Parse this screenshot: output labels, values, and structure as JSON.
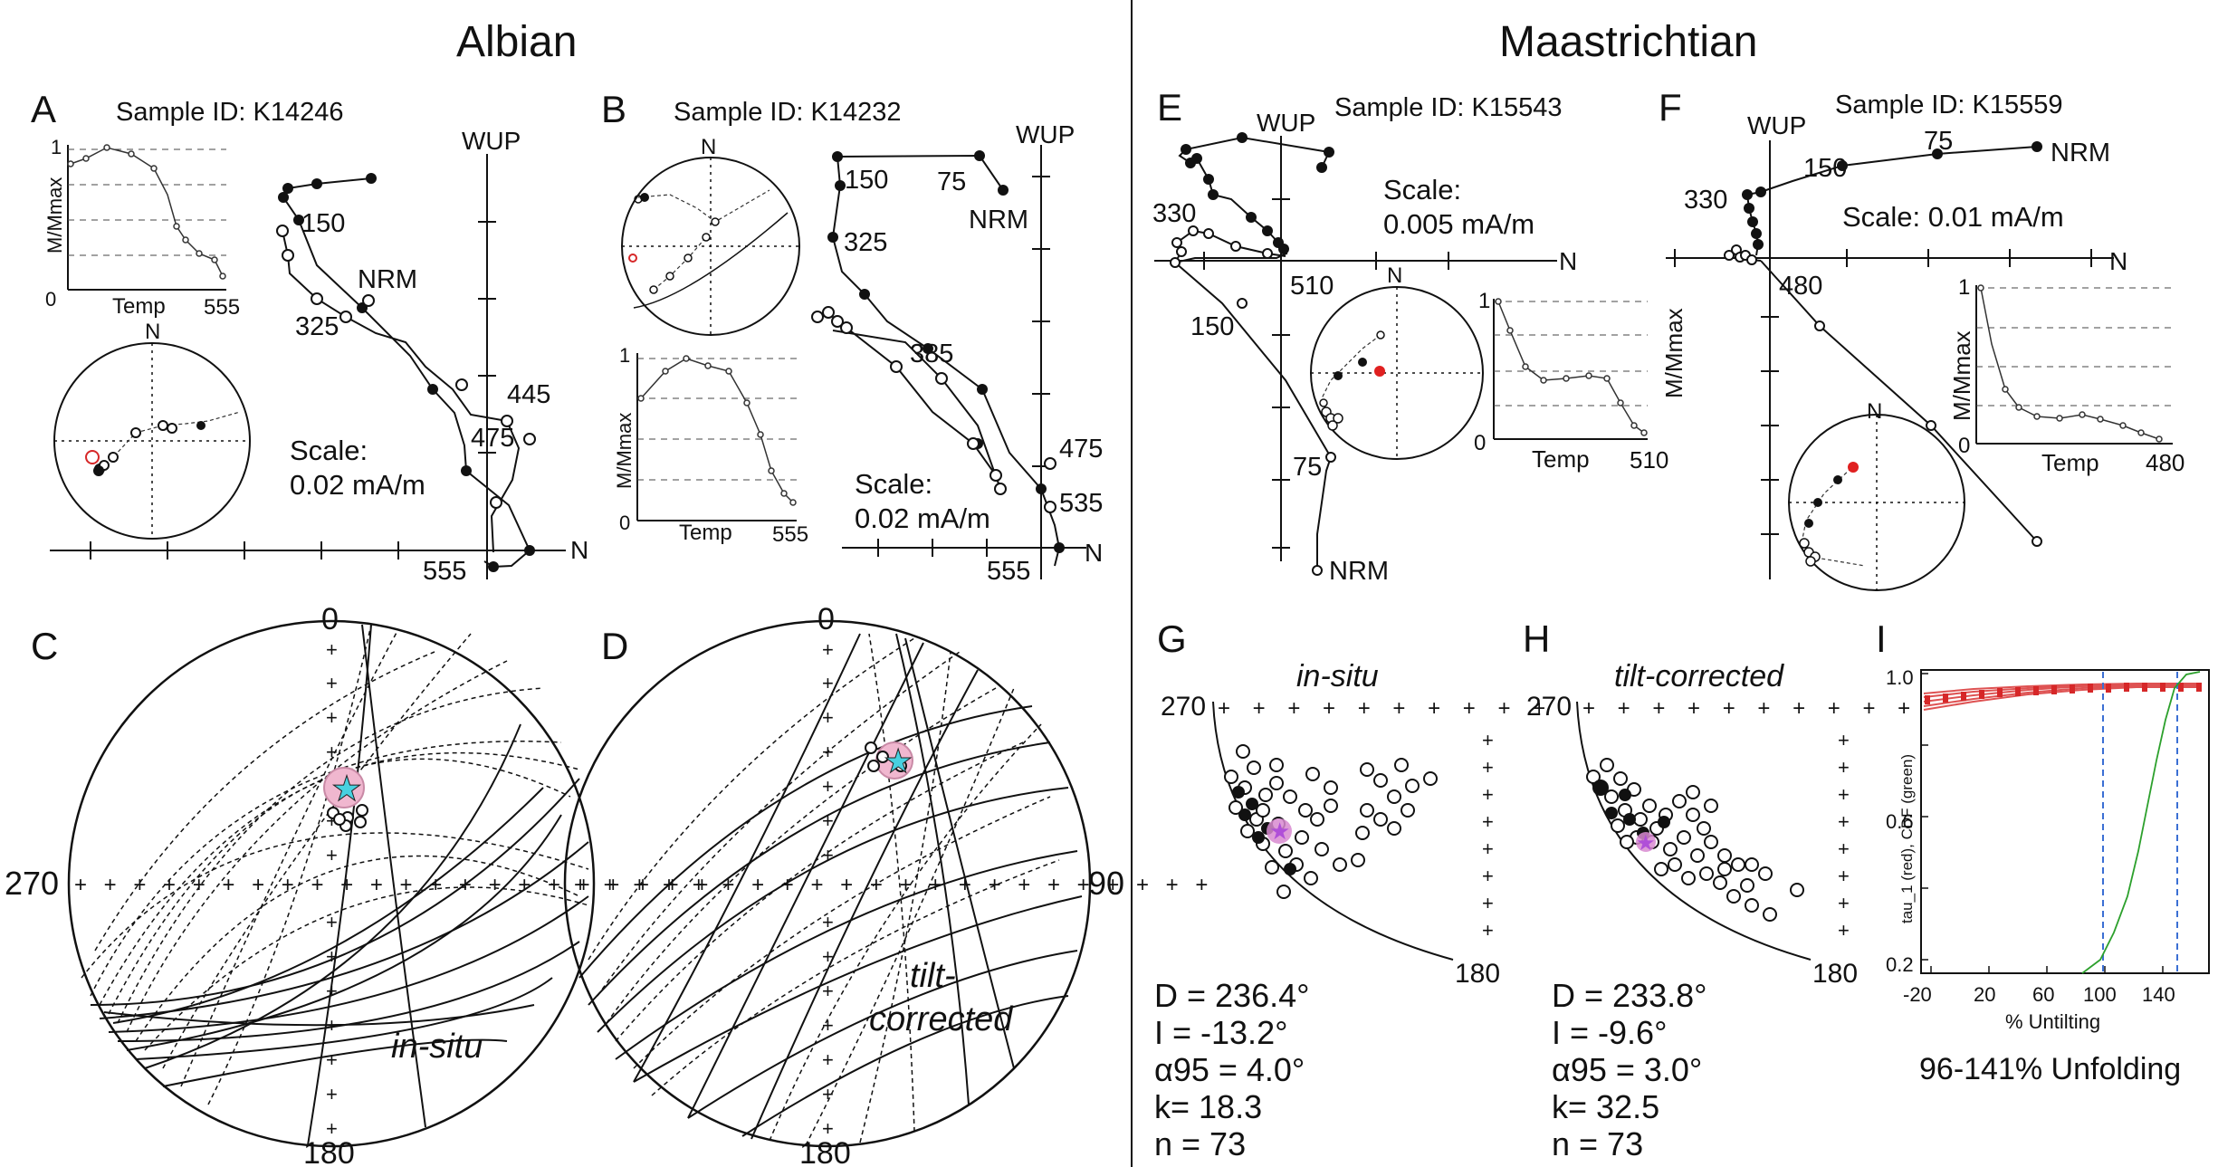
{
  "sections": {
    "left": "Albian",
    "right": "Maastrichtian"
  },
  "panel_letters": {
    "a": "A",
    "b": "B",
    "c": "C",
    "d": "D",
    "e": "E",
    "f": "F",
    "g": "G",
    "h": "H",
    "i": "I"
  },
  "panelA": {
    "sample_id": "Sample ID: K14246",
    "wup": "WUP",
    "n_axis": "N",
    "nrm": "NRM",
    "scale_line1": "Scale:",
    "scale_line2": "0.02 mA/m",
    "steps": [
      "150",
      "325",
      "445",
      "475",
      "555"
    ],
    "inset_ylabel": "M/Mmax",
    "inset_xlabel": "Temp",
    "inset_y1": "1",
    "inset_y0": "0",
    "inset_xmax": "555",
    "stereo_n": "N"
  },
  "panelB": {
    "sample_id": "Sample ID: K14232",
    "wup": "WUP",
    "n_axis": "N",
    "nrm": "NRM",
    "scale_line1": "Scale:",
    "scale_line2": "0.02 mA/m",
    "steps": [
      "150",
      "75",
      "325",
      "385",
      "475",
      "535",
      "555"
    ],
    "inset_ylabel": "M/Mmax",
    "inset_xlabel": "Temp",
    "inset_y1": "1",
    "inset_y0": "0",
    "inset_xmax": "555",
    "stereo_n": "N"
  },
  "panelE": {
    "sample_id": "Sample ID: K15543",
    "wup": "WUP",
    "n_axis": "N",
    "nrm": "NRM",
    "scale_line1": "Scale:",
    "scale_line2": "0.005 mA/m",
    "steps": [
      "330",
      "510",
      "150",
      "75"
    ],
    "inset_ylabel": "M/Mmax",
    "inset_xlabel": "Temp",
    "inset_y1": "1",
    "inset_y0": "0",
    "inset_xmax": "510",
    "stereo_n": "N"
  },
  "panelF": {
    "sample_id": "Sample ID: K15559",
    "wup": "WUP",
    "n_axis": "N",
    "nrm": "NRM",
    "scale_line1": "Scale: 0.01 mA/m",
    "steps": [
      "150",
      "75",
      "330",
      "480"
    ],
    "inset_ylabel": "M/Mmax",
    "inset_xlabel": "Temp",
    "inset_y1": "1",
    "inset_y0": "0",
    "inset_xmax": "480",
    "stereo_n": "N"
  },
  "panelC": {
    "top": "0",
    "left": "270",
    "bottom": "180",
    "label": "in-situ"
  },
  "panelD": {
    "top": "0",
    "right": "90",
    "bottom": "180",
    "label_line1": "tilt-",
    "label_line2": "corrected"
  },
  "panelG": {
    "title": "in-situ",
    "axis_270": "270",
    "axis_180": "180",
    "stats": [
      "D = 236.4°",
      "I = -13.2°",
      "α95 = 4.0°",
      "k= 18.3",
      "n = 73"
    ]
  },
  "panelH": {
    "title": "tilt-corrected",
    "axis_270": "270",
    "axis_180": "180",
    "stats": [
      "D = 233.8°",
      "I = -9.6°",
      "α95 = 3.0°",
      "k= 32.5",
      "n = 73"
    ]
  },
  "panelI": {
    "ylabel": "tau_1 (red), CDF (green)",
    "xlabel": "% Untilting",
    "yticks": [
      "1.0",
      "0.6",
      "0.2"
    ],
    "xticks": [
      "-20",
      "20",
      "60",
      "100",
      "140"
    ],
    "caption": "96-141% Unfolding",
    "colors": {
      "tau": "#d62728",
      "cdf": "#2ca02c",
      "bounds": "#3b6fd4"
    }
  }
}
